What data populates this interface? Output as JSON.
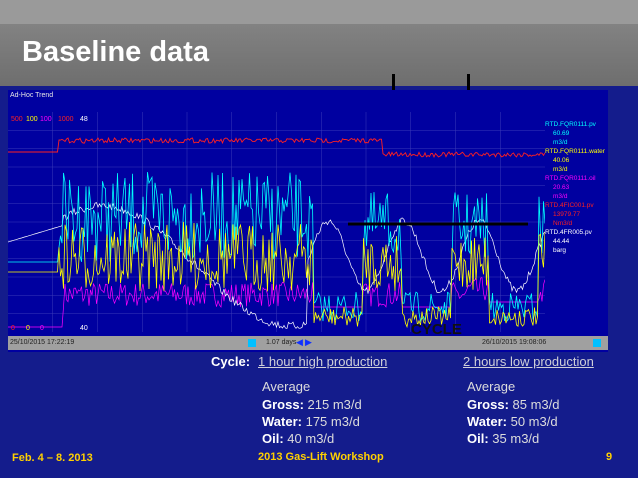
{
  "slide": {
    "title": "Baseline data",
    "footer_left": "Feb. 4 – 8. 2013",
    "footer_center": "2013 Gas-Lift Workshop",
    "page_number": "9"
  },
  "trend": {
    "window_title": "Ad-Hoc Trend",
    "scale_values": [
      "500",
      "100",
      "100",
      "1000",
      "48"
    ],
    "bottom_values": [
      "0",
      "0",
      "0",
      "40"
    ],
    "start_time": "25/10/2015 17:22:19",
    "end_time": "26/10/2015 19:08:06",
    "span": "1.07 days",
    "annotation": "CYCLE",
    "legend": [
      {
        "tag": "RTD.FQR0111.pv",
        "value": "60.69",
        "unit": "m3/d",
        "color": "#00ffff"
      },
      {
        "tag": "RTD.FQR0111.water",
        "value": "40.06",
        "unit": "m3/d",
        "color": "#ffff00"
      },
      {
        "tag": "RTD.FQR0111.oil",
        "value": "20.63",
        "unit": "m3/d",
        "color": "#ff00ff"
      },
      {
        "tag": "RTD.4FIC001.pv",
        "value": "13979.77",
        "unit": "Nm3/d",
        "color": "#ff2020"
      },
      {
        "tag": "RTD.4FR005.pv",
        "value": "44.44",
        "unit": "barg",
        "color": "#ffffff"
      }
    ]
  },
  "cycle": {
    "label": "Cycle:",
    "high_link": "1 hour high production",
    "low_link": "2 hours low production",
    "left": {
      "heading": "Average",
      "gross_label": "Gross:",
      "gross": "215 m3/d",
      "water_label": "Water:",
      "water": "175 m3/d",
      "oil_label": "Oil:",
      "oil": "40 m3/d"
    },
    "right": {
      "heading": "Average",
      "gross_label": "Gross:",
      "gross": "85 m3/d",
      "water_label": "Water:",
      "water": "50 m3/d",
      "oil_label": "Oil:",
      "oil": "35 m3/d"
    }
  },
  "colors": {
    "background": "#141c8c",
    "footer": "#ffd000",
    "trend_bg": "#0000a0"
  }
}
